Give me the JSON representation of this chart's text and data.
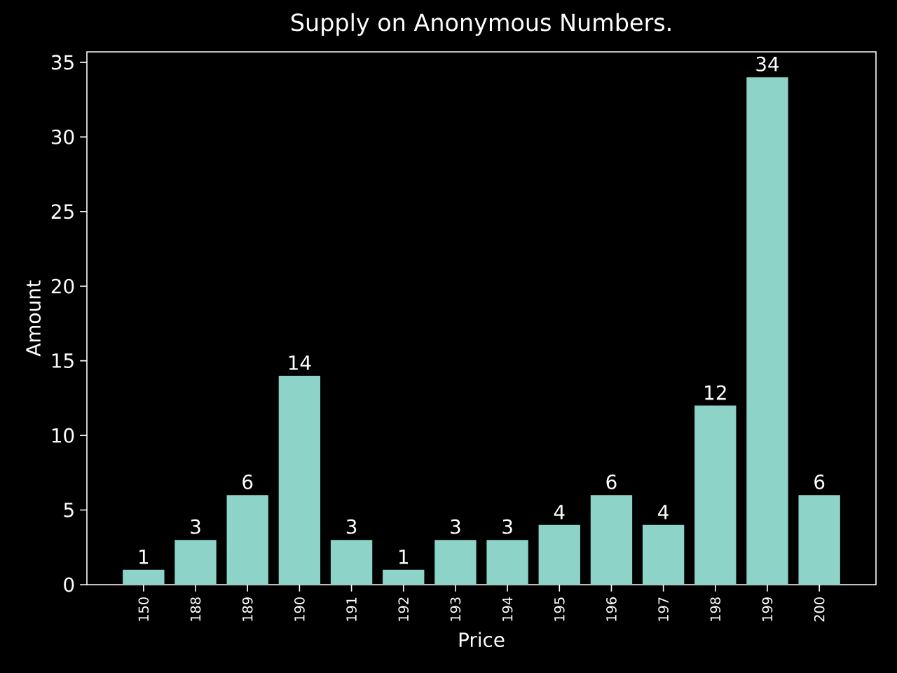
{
  "chart_data": {
    "type": "bar",
    "title": "Supply on Anonymous Numbers.",
    "xlabel": "Price",
    "ylabel": "Amount",
    "categories": [
      "150",
      "188",
      "189",
      "190",
      "191",
      "192",
      "193",
      "194",
      "195",
      "196",
      "197",
      "198",
      "199",
      "200"
    ],
    "values": [
      1,
      3,
      6,
      14,
      3,
      1,
      3,
      3,
      4,
      6,
      4,
      12,
      34,
      6
    ],
    "color": "#8dd3c7",
    "ylim": [
      0,
      35.7
    ],
    "yticks": [
      0,
      5,
      10,
      15,
      20,
      25,
      30,
      35
    ],
    "data_labels": true
  }
}
